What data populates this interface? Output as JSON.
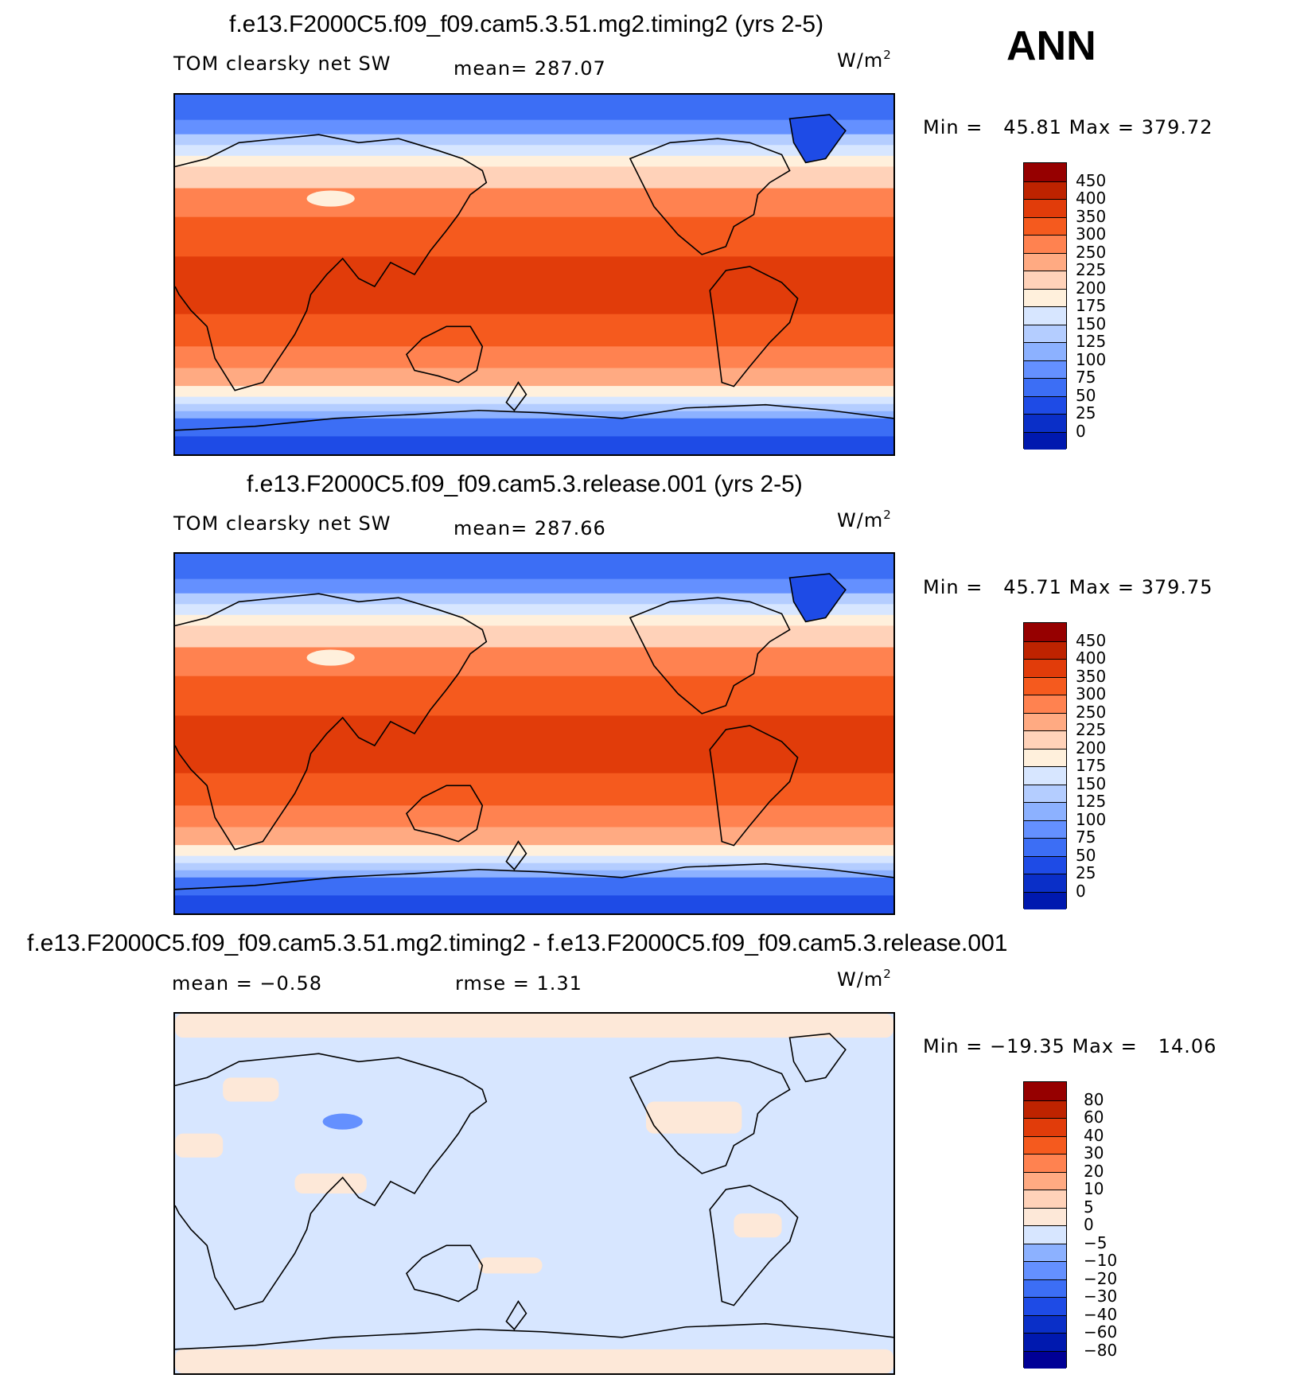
{
  "season": "ANN",
  "colors": {
    "abs_scale": [
      "#000096",
      "#0019af",
      "#0a2fc8",
      "#1e4be6",
      "#3c6ef5",
      "#6490ff",
      "#8cb1ff",
      "#b4cdff",
      "#d7e6ff",
      "#fff0dc",
      "#ffd2b9",
      "#ffaa82",
      "#ff8250",
      "#f55a1e",
      "#e13c0a",
      "#be2300",
      "#960000"
    ],
    "diff_scale": [
      "#000096",
      "#0019af",
      "#0a2fc8",
      "#1e4be6",
      "#3c6ef5",
      "#6490ff",
      "#8cb1ff",
      "#d7e6ff",
      "#fde8d8",
      "#ffd2b9",
      "#ffaa82",
      "#ff8250",
      "#f55a1e",
      "#e13c0a",
      "#be2300",
      "#960000"
    ]
  },
  "panels": [
    {
      "title": "f.e13.F2000C5.f09_f09.cam5.3.51.mg2.timing2 (yrs 2-5)",
      "left_label": "TOM clearsky net SW",
      "center_label": "mean= 287.07",
      "units": "W/m",
      "units_sup": "2",
      "min_label": "Min =",
      "min": "45.81",
      "max_label": "Max =",
      "max": "379.72",
      "levels": [
        "450",
        "400",
        "350",
        "300",
        "250",
        "225",
        "200",
        "175",
        "150",
        "125",
        "100",
        "75",
        "50",
        "25",
        "0"
      ],
      "fields": {
        "mean": 287.07,
        "min": 45.81,
        "max": 379.72
      }
    },
    {
      "title": "f.e13.F2000C5.f09_f09.cam5.3.release.001 (yrs 2-5)",
      "left_label": "TOM clearsky net SW",
      "center_label": "mean= 287.66",
      "units": "W/m",
      "units_sup": "2",
      "min_label": "Min =",
      "min": "45.71",
      "max_label": "Max =",
      "max": "379.75",
      "levels": [
        "450",
        "400",
        "350",
        "300",
        "250",
        "225",
        "200",
        "175",
        "150",
        "125",
        "100",
        "75",
        "50",
        "25",
        "0"
      ],
      "fields": {
        "mean": 287.66,
        "min": 45.71,
        "max": 379.75
      }
    },
    {
      "title": "f.e13.F2000C5.f09_f09.cam5.3.51.mg2.timing2 - f.e13.F2000C5.f09_f09.cam5.3.release.001",
      "left_label": "mean =   −0.58",
      "center_label": "rmse =    1.31",
      "units": "W/m",
      "units_sup": "2",
      "min_label": "Min =",
      "min": "−19.35",
      "max_label": "Max =",
      "max": "14.06",
      "levels": [
        "80",
        "60",
        "40",
        "30",
        "20",
        "10",
        "5",
        "0",
        "−5",
        "−10",
        "−20",
        "−30",
        "−40",
        "−60",
        "−80"
      ],
      "fields": {
        "mean": -0.58,
        "rmse": 1.31,
        "min": -19.35,
        "max": 14.06
      }
    }
  ]
}
